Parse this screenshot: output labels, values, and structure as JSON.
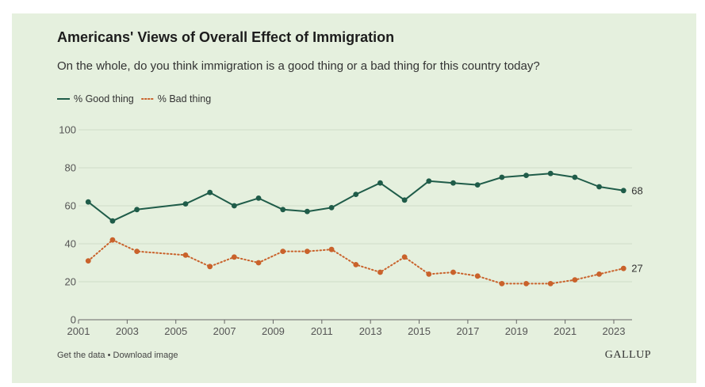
{
  "chart_data": {
    "type": "line",
    "title": "Americans' Views of Overall Effect of Immigration",
    "subtitle": "On the whole, do you think immigration is a good thing or a bad thing for this country today?",
    "xlabel": "",
    "ylabel": "",
    "xlim": [
      2001,
      2023.75
    ],
    "ylim": [
      0,
      100
    ],
    "y_ticks": [
      0,
      20,
      40,
      60,
      80,
      100
    ],
    "x_ticks": [
      "2001",
      "2003",
      "2005",
      "2007",
      "2009",
      "2011",
      "2013",
      "2015",
      "2017",
      "2019",
      "2021",
      "2023"
    ],
    "grid": "horizontal",
    "legend_position": "top-left",
    "series": [
      {
        "name": "% Good thing",
        "color": "#1f5c49",
        "style": "solid",
        "end_label": "68",
        "points": [
          {
            "x": 2001.4,
            "y": 62
          },
          {
            "x": 2002.4,
            "y": 52
          },
          {
            "x": 2003.4,
            "y": 58
          },
          {
            "x": 2005.4,
            "y": 61
          },
          {
            "x": 2006.4,
            "y": 67
          },
          {
            "x": 2007.4,
            "y": 60
          },
          {
            "x": 2008.4,
            "y": 64
          },
          {
            "x": 2009.4,
            "y": 58
          },
          {
            "x": 2010.4,
            "y": 57
          },
          {
            "x": 2011.4,
            "y": 59
          },
          {
            "x": 2012.4,
            "y": 66
          },
          {
            "x": 2013.4,
            "y": 72
          },
          {
            "x": 2014.4,
            "y": 63
          },
          {
            "x": 2015.4,
            "y": 73
          },
          {
            "x": 2016.4,
            "y": 72
          },
          {
            "x": 2017.4,
            "y": 71
          },
          {
            "x": 2018.4,
            "y": 75
          },
          {
            "x": 2019.4,
            "y": 76
          },
          {
            "x": 2020.4,
            "y": 77
          },
          {
            "x": 2021.4,
            "y": 75
          },
          {
            "x": 2022.4,
            "y": 70
          },
          {
            "x": 2023.4,
            "y": 68
          }
        ]
      },
      {
        "name": "% Bad thing",
        "color": "#c9622b",
        "style": "dotted",
        "end_label": "27",
        "points": [
          {
            "x": 2001.4,
            "y": 31
          },
          {
            "x": 2002.4,
            "y": 42
          },
          {
            "x": 2003.4,
            "y": 36
          },
          {
            "x": 2005.4,
            "y": 34
          },
          {
            "x": 2006.4,
            "y": 28
          },
          {
            "x": 2007.4,
            "y": 33
          },
          {
            "x": 2008.4,
            "y": 30
          },
          {
            "x": 2009.4,
            "y": 36
          },
          {
            "x": 2010.4,
            "y": 36
          },
          {
            "x": 2011.4,
            "y": 37
          },
          {
            "x": 2012.4,
            "y": 29
          },
          {
            "x": 2013.4,
            "y": 25
          },
          {
            "x": 2014.4,
            "y": 33
          },
          {
            "x": 2015.4,
            "y": 24
          },
          {
            "x": 2016.4,
            "y": 25
          },
          {
            "x": 2017.4,
            "y": 23
          },
          {
            "x": 2018.4,
            "y": 19
          },
          {
            "x": 2019.4,
            "y": 19
          },
          {
            "x": 2020.4,
            "y": 19
          },
          {
            "x": 2021.4,
            "y": 21
          },
          {
            "x": 2022.4,
            "y": 24
          },
          {
            "x": 2023.4,
            "y": 27
          }
        ]
      }
    ]
  },
  "colors": {
    "panel_background": "#e5f0de",
    "gridline": "#cfdcc8",
    "axis": "#666666"
  },
  "footer": {
    "get_data": "Get the data",
    "separator": " • ",
    "download": "Download image",
    "brand": "GALLUP"
  }
}
